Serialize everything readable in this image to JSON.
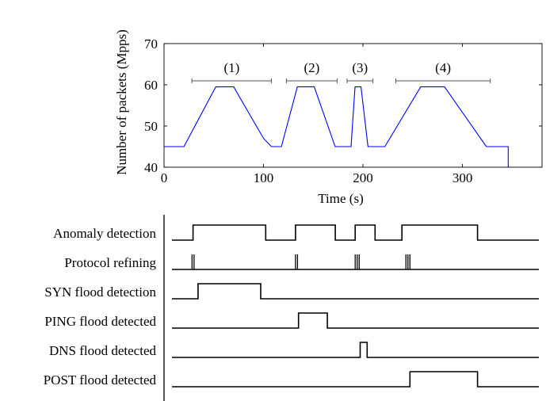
{
  "chart_data": [
    {
      "type": "line",
      "xlabel": "Time (s)",
      "ylabel": "Number of packets (Mpps)",
      "xlim": [
        0,
        380
      ],
      "ylim": [
        40,
        70
      ],
      "xticks": [
        0,
        100,
        200,
        300
      ],
      "yticks": [
        40,
        50,
        60,
        70
      ],
      "grid": false,
      "line_color": "#0000ff",
      "series": [
        {
          "x": [
            0,
            20,
            52,
            70,
            100,
            108,
            118,
            134,
            151,
            172,
            180,
            188,
            192,
            198,
            205,
            212,
            222,
            258,
            282,
            324,
            346,
            346
          ],
          "y": [
            45,
            45,
            59.5,
            59.5,
            47,
            45,
            45,
            59.5,
            59.5,
            45,
            45,
            45,
            59.5,
            59.5,
            45,
            45,
            45,
            59.5,
            59.5,
            45,
            45,
            40
          ]
        }
      ],
      "annotations": [
        {
          "label": "(1)",
          "x_range": [
            28,
            108
          ]
        },
        {
          "label": "(2)",
          "x_range": [
            123,
            174
          ]
        },
        {
          "label": "(3)",
          "x_range": [
            184,
            210
          ]
        },
        {
          "label": "(4)",
          "x_range": [
            233,
            328
          ]
        }
      ]
    },
    {
      "type": "timing",
      "xlim": [
        0,
        380
      ],
      "signals": [
        {
          "label": "Anomaly detection",
          "high": [
            [
              22,
              95
            ],
            [
              125,
              165
            ],
            [
              185,
              205
            ],
            [
              232,
              308
            ]
          ],
          "ticks": []
        },
        {
          "label": "Protocol refining",
          "high": [],
          "ticks": [
            [
              21,
              23
            ],
            [
              125,
              127
            ],
            [
              185,
              187,
              189
            ],
            [
              236,
              238,
              240
            ]
          ]
        },
        {
          "label": "SYN flood detection",
          "high": [
            [
              27,
              90
            ]
          ],
          "ticks": []
        },
        {
          "label": "PING flood detected",
          "high": [
            [
              128,
              157
            ]
          ],
          "ticks": []
        },
        {
          "label": "DNS flood detected",
          "high": [
            [
              190,
              197
            ]
          ],
          "ticks": []
        },
        {
          "label": "POST flood detected",
          "high": [
            [
              240,
              308
            ]
          ],
          "ticks": []
        }
      ]
    }
  ]
}
